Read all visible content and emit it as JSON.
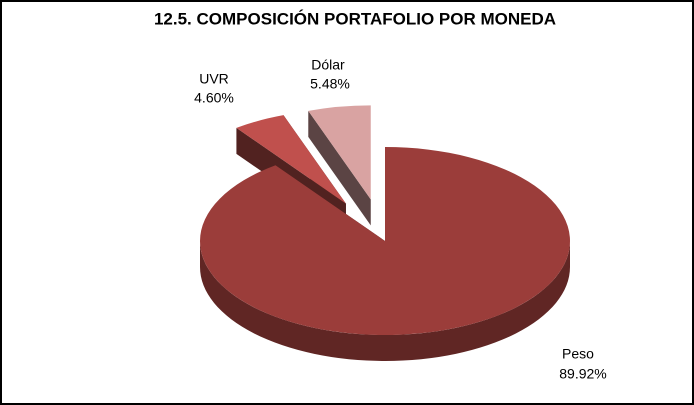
{
  "chart_data": {
    "type": "pie",
    "title": "12.5. COMPOSICIÓN PORTAFOLIO POR MONEDA",
    "categories": [
      "Peso",
      "UVR",
      "Dólar"
    ],
    "values": [
      89.92,
      4.6,
      5.48
    ],
    "value_labels": [
      "89.92%",
      "4.60%",
      "5.48%"
    ],
    "colors": [
      "#9b3d3a",
      "#c0504d",
      "#d9a3a2"
    ]
  }
}
